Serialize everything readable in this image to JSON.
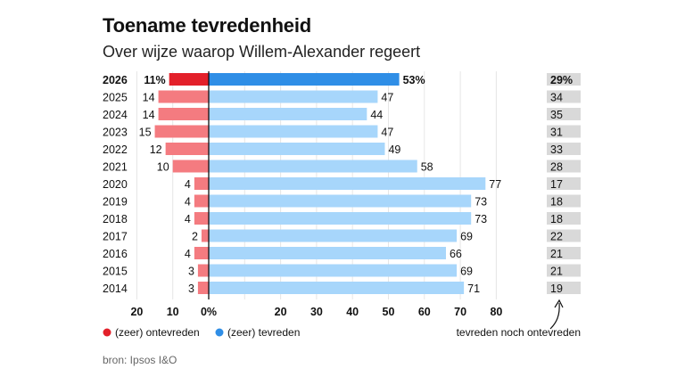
{
  "chart_data": {
    "type": "bar",
    "title": "Toename tevredenheid",
    "subtitle": "Over wijze waarop Willem-Alexander regeert",
    "categories": [
      "2026",
      "2025",
      "2024",
      "2023",
      "2022",
      "2021",
      "2020",
      "2019",
      "2018",
      "2017",
      "2016",
      "2015",
      "2014"
    ],
    "series": [
      {
        "name": "(zeer) ontevreden",
        "values": [
          11,
          14,
          14,
          15,
          12,
          10,
          4,
          4,
          4,
          2,
          4,
          3,
          3
        ]
      },
      {
        "name": "(zeer) tevreden",
        "values": [
          53,
          47,
          44,
          47,
          49,
          58,
          77,
          73,
          73,
          69,
          66,
          69,
          71
        ]
      }
    ],
    "neutral": {
      "name": "tevreden noch ontevreden",
      "values": [
        29,
        34,
        35,
        31,
        33,
        28,
        17,
        18,
        18,
        22,
        21,
        21,
        19
      ]
    },
    "first_row_labels": {
      "left": "11%",
      "right": "53%",
      "neutral": "29%"
    },
    "x_ticks": [
      "20",
      "10",
      "0%",
      "20",
      "30",
      "40",
      "50",
      "60",
      "70",
      "80"
    ],
    "x_tick_values": [
      -20,
      -10,
      0,
      20,
      30,
      40,
      50,
      60,
      70,
      80
    ],
    "xlim": [
      -20,
      80
    ],
    "grid": true,
    "legend_placement": "bottom",
    "colors": {
      "neg_highlight": "#e3202a",
      "neg": "#f47b80",
      "pos_highlight": "#2f8ee6",
      "pos": "#a7d6fb",
      "neutral_box": "#d9d9d9",
      "grid": "#e6e6e6",
      "axis": "#111111"
    }
  },
  "source": "bron: Ipsos I&O"
}
